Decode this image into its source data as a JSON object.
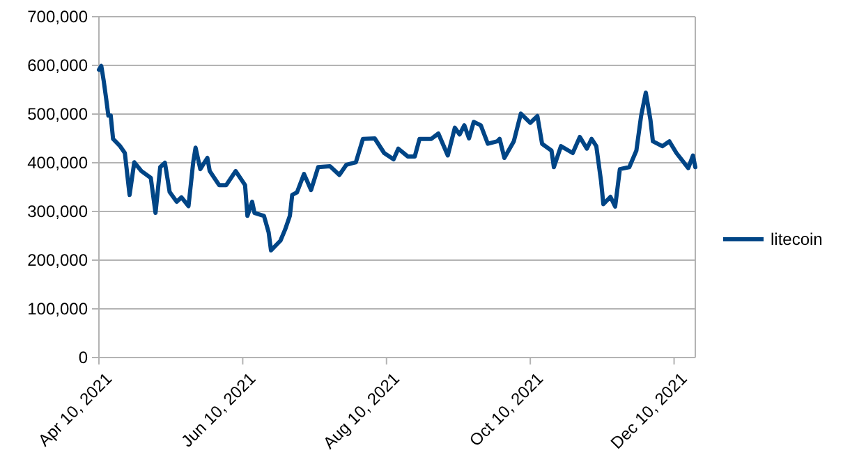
{
  "chart_data": {
    "type": "line",
    "xlim": [
      "2021-04-10",
      "2021-12-19"
    ],
    "xticks": [
      {
        "value": "2021-04-10",
        "label": "Apr 10, 2021"
      },
      {
        "value": "2021-06-10",
        "label": "Jun 10, 2021"
      },
      {
        "value": "2021-08-10",
        "label": "Aug 10, 2021"
      },
      {
        "value": "2021-10-10",
        "label": "Oct 10, 2021"
      },
      {
        "value": "2021-12-10",
        "label": "Dec 10, 2021"
      }
    ],
    "ylim": [
      0,
      700000
    ],
    "yticks": [
      {
        "value": 0,
        "label": "0"
      },
      {
        "value": 100000,
        "label": "100,000"
      },
      {
        "value": 200000,
        "label": "200,000"
      },
      {
        "value": 300000,
        "label": "300,000"
      },
      {
        "value": 400000,
        "label": "400,000"
      },
      {
        "value": 500000,
        "label": "500,000"
      },
      {
        "value": 600000,
        "label": "600,000"
      },
      {
        "value": 700000,
        "label": "700,000"
      }
    ],
    "grid": "y",
    "legend": "right",
    "marker": "none",
    "line_style": "solid",
    "x": [
      "2021-04-10",
      "2021-04-11",
      "2021-04-12",
      "2021-04-13",
      "2021-04-14",
      "2021-04-15",
      "2021-04-16",
      "2021-04-19",
      "2021-04-21",
      "2021-04-23",
      "2021-04-25",
      "2021-04-28",
      "2021-05-02",
      "2021-05-04",
      "2021-05-06",
      "2021-05-08",
      "2021-05-10",
      "2021-05-13",
      "2021-05-15",
      "2021-05-18",
      "2021-05-20",
      "2021-05-21",
      "2021-05-23",
      "2021-05-26",
      "2021-05-27",
      "2021-05-31",
      "2021-06-03",
      "2021-06-07",
      "2021-06-11",
      "2021-06-12",
      "2021-06-14",
      "2021-06-15",
      "2021-06-19",
      "2021-06-21",
      "2021-06-22",
      "2021-06-26",
      "2021-06-28",
      "2021-06-30",
      "2021-07-01",
      "2021-07-03",
      "2021-07-06",
      "2021-07-09",
      "2021-07-12",
      "2021-07-17",
      "2021-07-21",
      "2021-07-24",
      "2021-07-28",
      "2021-07-31",
      "2021-08-05",
      "2021-08-09",
      "2021-08-13",
      "2021-08-15",
      "2021-08-19",
      "2021-08-22",
      "2021-08-24",
      "2021-08-29",
      "2021-09-01",
      "2021-09-05",
      "2021-09-08",
      "2021-09-10",
      "2021-09-12",
      "2021-09-14",
      "2021-09-16",
      "2021-09-19",
      "2021-09-22",
      "2021-09-26",
      "2021-09-27",
      "2021-09-29",
      "2021-10-03",
      "2021-10-06",
      "2021-10-10",
      "2021-10-13",
      "2021-10-15",
      "2021-10-19",
      "2021-10-20",
      "2021-10-23",
      "2021-10-28",
      "2021-10-31",
      "2021-11-03",
      "2021-11-05",
      "2021-11-07",
      "2021-11-09",
      "2021-11-10",
      "2021-11-13",
      "2021-11-15",
      "2021-11-17",
      "2021-11-21",
      "2021-11-24",
      "2021-11-26",
      "2021-11-28",
      "2021-11-30",
      "2021-12-01",
      "2021-12-05",
      "2021-12-08",
      "2021-12-11",
      "2021-12-16",
      "2021-12-18",
      "2021-12-19"
    ],
    "series": [
      {
        "name": "litecoin",
        "color": "#004586",
        "values": [
          591000,
          599000,
          569000,
          534000,
          497000,
          497000,
          449000,
          434000,
          420000,
          334000,
          401000,
          383000,
          369000,
          297000,
          391000,
          400000,
          340000,
          320000,
          329000,
          311000,
          401000,
          431000,
          387000,
          410000,
          383000,
          354000,
          354000,
          383000,
          354000,
          291000,
          320000,
          297000,
          291000,
          257000,
          220000,
          240000,
          263000,
          291000,
          334000,
          339000,
          377000,
          344000,
          391000,
          393000,
          375000,
          396000,
          401000,
          449000,
          450000,
          420000,
          407000,
          429000,
          413000,
          413000,
          449000,
          449000,
          460000,
          415000,
          472000,
          458000,
          477000,
          450000,
          484000,
          477000,
          439000,
          444000,
          449000,
          410000,
          444000,
          501000,
          482000,
          496000,
          439000,
          425000,
          391000,
          434000,
          420000,
          453000,
          429000,
          449000,
          434000,
          363000,
          315000,
          330000,
          310000,
          387000,
          391000,
          425000,
          496000,
          544000,
          487000,
          444000,
          434000,
          444000,
          420000,
          389000,
          415000,
          391000
        ]
      }
    ]
  }
}
